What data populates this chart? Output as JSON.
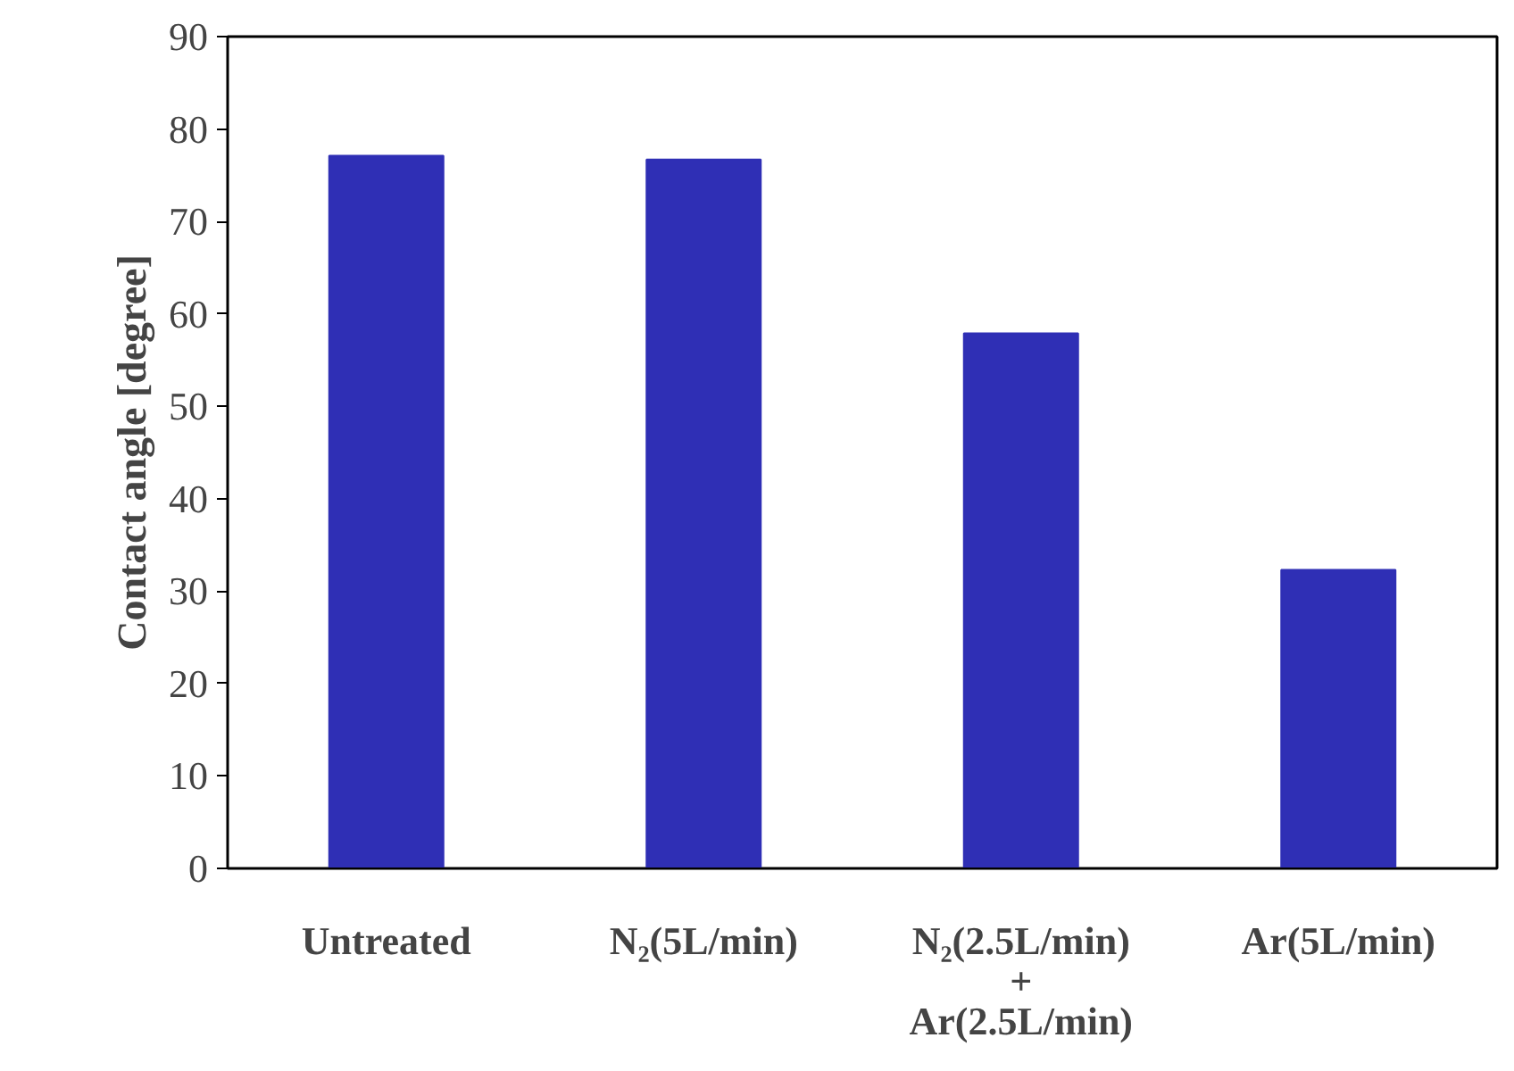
{
  "chart_data": {
    "type": "bar",
    "ylabel": "Contact angle [degree]",
    "categories": [
      "Untreated",
      "N₂(5L/min)",
      "N₂(2.5L/min)\n+\nAr(2.5L/min)",
      "Ar(5L/min)"
    ],
    "values": [
      77.1,
      76.7,
      57.9,
      32.3
    ],
    "color": "#2f2fb5",
    "ylim": [
      0,
      90
    ],
    "yticks": [
      0,
      10,
      20,
      30,
      40,
      50,
      60,
      70,
      80,
      90
    ],
    "grid": false
  }
}
